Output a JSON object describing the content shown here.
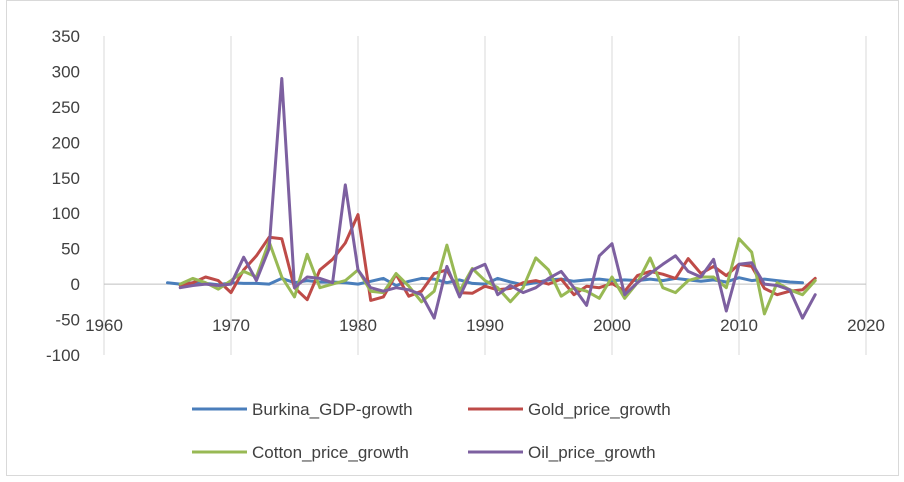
{
  "chart_data": {
    "type": "line",
    "title": "",
    "xlabel": "",
    "ylabel": "",
    "xlim": [
      1960,
      2020
    ],
    "ylim": [
      -100,
      350
    ],
    "x_ticks": [
      1960,
      1970,
      1980,
      1990,
      2000,
      2010,
      2020
    ],
    "y_ticks": [
      -100,
      -50,
      0,
      50,
      100,
      150,
      200,
      250,
      300,
      350
    ],
    "grid": "vertical",
    "legend_position": "bottom",
    "series": [
      {
        "name": "Burkina_GDP-growth",
        "color": "#4a7ebb",
        "x": [
          1965,
          1966,
          1967,
          1968,
          1969,
          1970,
          1971,
          1972,
          1973,
          1974,
          1975,
          1976,
          1977,
          1978,
          1979,
          1980,
          1981,
          1982,
          1983,
          1984,
          1985,
          1986,
          1987,
          1988,
          1989,
          1990,
          1991,
          1992,
          1993,
          1994,
          1995,
          1996,
          1997,
          1998,
          1999,
          2000,
          2001,
          2002,
          2003,
          2004,
          2005,
          2006,
          2007,
          2008,
          2009,
          2010,
          2011,
          2012,
          2013,
          2014,
          2015
        ],
        "values": [
          2,
          0,
          2,
          1,
          -1,
          2,
          1,
          1,
          0,
          8,
          2,
          5,
          3,
          3,
          2,
          0,
          4,
          8,
          -2,
          4,
          8,
          7,
          2,
          6,
          1,
          0,
          8,
          3,
          -1,
          2,
          6,
          7,
          4,
          6,
          7,
          5,
          6,
          5,
          7,
          5,
          8,
          6,
          4,
          6,
          3,
          9,
          5,
          7,
          5,
          3,
          2
        ]
      },
      {
        "name": "Gold_price_growth",
        "color": "#be4b48",
        "x": [
          1966,
          1967,
          1968,
          1969,
          1970,
          1971,
          1972,
          1973,
          1974,
          1975,
          1976,
          1977,
          1978,
          1979,
          1980,
          1981,
          1982,
          1983,
          1984,
          1985,
          1986,
          1987,
          1988,
          1989,
          1990,
          1991,
          1992,
          1993,
          1994,
          1995,
          1996,
          1997,
          1998,
          1999,
          2000,
          2001,
          2002,
          2003,
          2004,
          2005,
          2006,
          2007,
          2008,
          2009,
          2010,
          2011,
          2012,
          2013,
          2014,
          2015,
          2016
        ],
        "values": [
          -2,
          2,
          10,
          5,
          -12,
          20,
          40,
          66,
          64,
          -5,
          -22,
          20,
          35,
          58,
          98,
          -23,
          -18,
          14,
          -17,
          -10,
          15,
          20,
          -12,
          -13,
          -3,
          -8,
          -6,
          2,
          5,
          0,
          7,
          -15,
          -3,
          -5,
          1,
          -10,
          12,
          18,
          14,
          8,
          36,
          15,
          25,
          12,
          28,
          25,
          -6,
          -15,
          -10,
          -8,
          8
        ]
      },
      {
        "name": "Cotton_price_growth",
        "color": "#98b954",
        "x": [
          1966,
          1967,
          1968,
          1969,
          1970,
          1971,
          1972,
          1973,
          1974,
          1975,
          1976,
          1977,
          1978,
          1979,
          1980,
          1981,
          1982,
          1983,
          1984,
          1985,
          1986,
          1987,
          1988,
          1989,
          1990,
          1991,
          1992,
          1993,
          1994,
          1995,
          1996,
          1997,
          1998,
          1999,
          2000,
          2001,
          2002,
          2003,
          2004,
          2005,
          2006,
          2007,
          2008,
          2009,
          2010,
          2011,
          2012,
          2013,
          2014,
          2015,
          2016
        ],
        "values": [
          0,
          8,
          2,
          -7,
          5,
          18,
          10,
          60,
          10,
          -18,
          42,
          -5,
          0,
          5,
          20,
          -10,
          -12,
          15,
          -3,
          -25,
          -10,
          55,
          -10,
          22,
          5,
          -5,
          -25,
          -5,
          37,
          20,
          -17,
          -5,
          -10,
          -20,
          10,
          -20,
          2,
          37,
          -5,
          -12,
          5,
          10,
          10,
          -5,
          64,
          45,
          -42,
          2,
          -8,
          -15,
          5
        ]
      },
      {
        "name": "Oil_price_growth",
        "color": "#7d60a0",
        "x": [
          1966,
          1967,
          1968,
          1969,
          1970,
          1971,
          1972,
          1973,
          1974,
          1975,
          1976,
          1977,
          1978,
          1979,
          1980,
          1981,
          1982,
          1983,
          1984,
          1985,
          1986,
          1987,
          1988,
          1989,
          1990,
          1991,
          1992,
          1993,
          1994,
          1995,
          1996,
          1997,
          1998,
          1999,
          2000,
          2001,
          2002,
          2003,
          2004,
          2005,
          2006,
          2007,
          2008,
          2009,
          2010,
          2011,
          2012,
          2013,
          2014,
          2015,
          2016
        ],
        "values": [
          -5,
          -2,
          0,
          -2,
          0,
          38,
          5,
          50,
          290,
          -5,
          10,
          8,
          2,
          140,
          20,
          -5,
          -10,
          -5,
          -8,
          -15,
          -48,
          25,
          -18,
          20,
          28,
          -15,
          -2,
          -12,
          -5,
          8,
          18,
          -5,
          -30,
          40,
          57,
          -15,
          2,
          15,
          28,
          40,
          18,
          10,
          35,
          -38,
          28,
          30,
          0,
          -2,
          -8,
          -48,
          -15
        ]
      }
    ]
  }
}
